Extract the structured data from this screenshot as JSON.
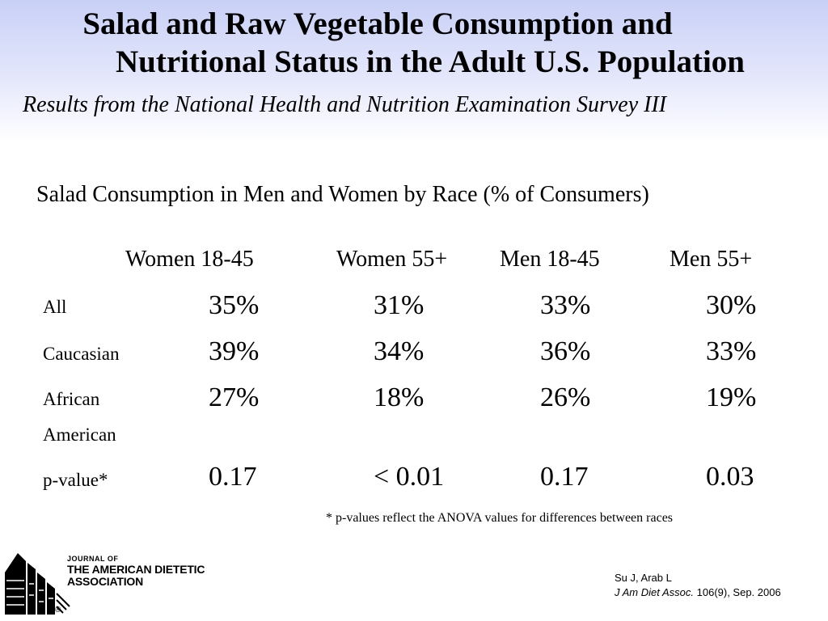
{
  "title": {
    "line1": "Salad and Raw Vegetable Consumption and",
    "line2": "Nutritional Status in the Adult U.S. Population"
  },
  "subtitle": "Results from the National Health and Nutrition Examination Survey III",
  "table": {
    "title": "Salad Consumption in Men and Women by Race (% of Consumers)",
    "columns": [
      "Women 18-45",
      "Women 55+",
      "Men 18-45",
      "Men 55+"
    ],
    "rows": [
      {
        "label": "All",
        "values": [
          "35%",
          "31%",
          "33%",
          "30%"
        ]
      },
      {
        "label": "Caucasian",
        "values": [
          "39%",
          "34%",
          "36%",
          "33%"
        ]
      },
      {
        "label": "African American",
        "values": [
          "27%",
          "18%",
          "26%",
          "19%"
        ]
      },
      {
        "label": "p-value*",
        "values": [
          "0.17",
          "< 0.01",
          "0.17",
          "0.03"
        ]
      }
    ]
  },
  "footnote": "* p-values reflect the ANOVA values for differences between races",
  "logo": {
    "line1": "JOURNAL OF",
    "line2": "THE AMERICAN DIETETIC",
    "line3": "ASSOCIATION",
    "registered": "®"
  },
  "citation": {
    "authors": "Su J, Arab L",
    "journal": "J Am Diet Assoc.",
    "details": " 106(9), Sep. 2006"
  }
}
